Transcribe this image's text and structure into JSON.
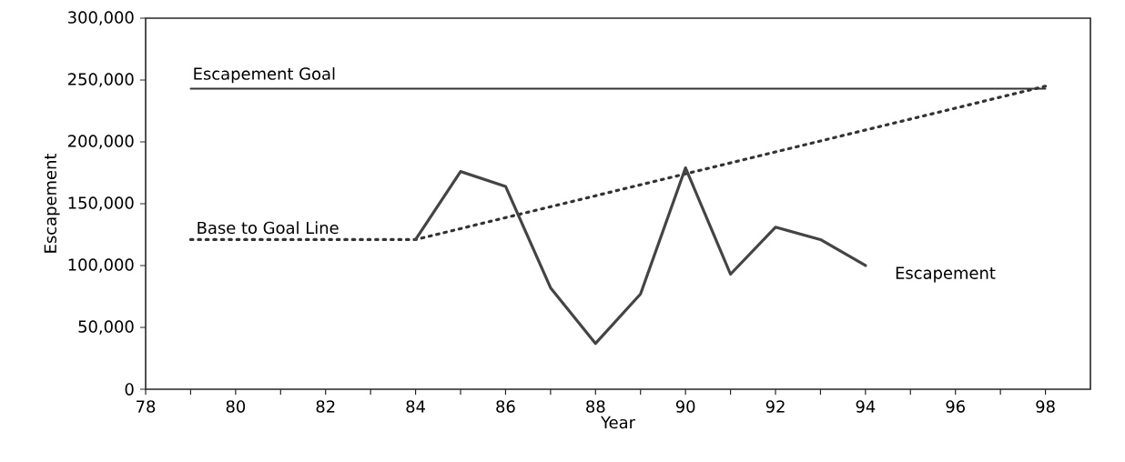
{
  "chart_data": {
    "type": "line",
    "xlabel": "Year",
    "ylabel": "Escapement",
    "xlim": [
      78,
      99
    ],
    "ylim": [
      0,
      300000
    ],
    "xticks": [
      78,
      {
        "value": 79,
        "label": null
      },
      80,
      {
        "value": 81,
        "label": null
      },
      82,
      {
        "value": 83,
        "label": null
      },
      84,
      {
        "value": 85,
        "label": null
      },
      86,
      {
        "value": 87,
        "label": null
      },
      88,
      {
        "value": 89,
        "label": null
      },
      90,
      {
        "value": 91,
        "label": null
      },
      92,
      {
        "value": 93,
        "label": null
      },
      94,
      {
        "value": 95,
        "label": null
      },
      96,
      {
        "value": 97,
        "label": null
      },
      98
    ],
    "yticks": [
      0,
      {
        "value": 50000,
        "label": "50,000"
      },
      {
        "value": 100000,
        "label": "100,000"
      },
      {
        "value": 150000,
        "label": "150,000"
      },
      {
        "value": 200000,
        "label": "200,000"
      },
      {
        "value": 250000,
        "label": "250,000"
      },
      {
        "value": 300000,
        "label": "300,000"
      }
    ],
    "grid": false,
    "marker": "none",
    "series": [
      {
        "name": "Escapement Goal",
        "color": "#333333",
        "line_style": "solid",
        "x": [
          79,
          98
        ],
        "values": [
          243000,
          243000
        ]
      },
      {
        "name": "Base to Goal Line",
        "color": "#333333",
        "line_style": "dotted",
        "x": [
          79,
          84,
          98
        ],
        "values": [
          121000,
          121000,
          245000
        ]
      },
      {
        "name": "Escapement",
        "color": "#444444",
        "line_style": "solid",
        "x": [
          84,
          85,
          86,
          87,
          88,
          89,
          90,
          91,
          92,
          93,
          94
        ],
        "values": [
          121000,
          176000,
          164000,
          82000,
          37000,
          77000,
          179000,
          93000,
          131000,
          121000,
          100000
        ]
      }
    ]
  }
}
